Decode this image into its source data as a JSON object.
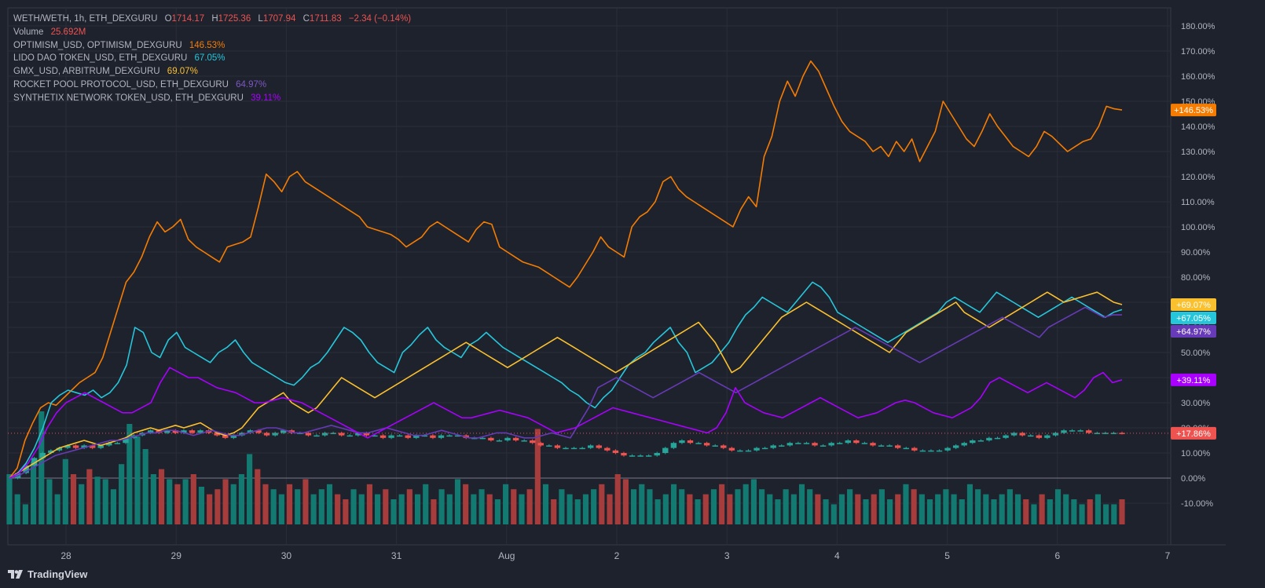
{
  "legend": {
    "main_symbol": "WETH/WETH, 1h, ETH_DEXGURU",
    "ohlc": [
      {
        "k": "O",
        "v": "1714.17"
      },
      {
        "k": "H",
        "v": "1725.36"
      },
      {
        "k": "L",
        "v": "1707.94"
      },
      {
        "k": "C",
        "v": "1711.83"
      }
    ],
    "change": "−2.34 (−0.14%)",
    "volume_label": "Volume",
    "volume_value": "25.692M"
  },
  "brand": "TradingView",
  "colors": {
    "background": "#1e222d",
    "grid": "#2a2e39",
    "up": "#26a69a",
    "down": "#ef5350",
    "volume_up": "#137a72",
    "volume_down": "#a63d3c",
    "zero_line": "#787b86"
  },
  "chart_data": {
    "type": "line",
    "x_ticks": [
      "28",
      "29",
      "30",
      "31",
      "Aug",
      "2",
      "3",
      "4",
      "5",
      "6",
      "7"
    ],
    "y_ticks": [
      "180.00%",
      "170.00%",
      "160.00%",
      "150.00%",
      "140.00%",
      "130.00%",
      "120.00%",
      "110.00%",
      "100.00%",
      "90.00%",
      "80.00%",
      "70.00%",
      "60.00%",
      "50.00%",
      "40.00%",
      "30.00%",
      "20.00%",
      "10.00%",
      "0.00%",
      "-10.00%"
    ],
    "ylim": [
      -17,
      185
    ],
    "y_unit": "%",
    "series": [
      {
        "name": "OPTIMISM_USD, OPTIMISM_DEXGURU",
        "value_label": "146.53%",
        "badge": "+146.53%",
        "color": "#f57c00",
        "values": [
          0,
          4,
          15,
          22,
          28,
          30,
          29,
          32,
          35,
          38,
          40,
          42,
          48,
          58,
          68,
          78,
          82,
          88,
          96,
          102,
          98,
          100,
          103,
          95,
          92,
          90,
          88,
          86,
          92,
          93,
          94,
          96,
          108,
          121,
          118,
          114,
          120,
          122,
          118,
          116,
          114,
          112,
          110,
          108,
          106,
          104,
          100,
          99,
          98,
          97,
          95,
          92,
          94,
          96,
          100,
          102,
          100,
          98,
          96,
          94,
          99,
          102,
          101,
          92,
          90,
          88,
          86,
          85,
          84,
          82,
          80,
          78,
          76,
          80,
          85,
          90,
          96,
          92,
          90,
          88,
          100,
          104,
          106,
          110,
          118,
          120,
          115,
          112,
          110,
          108,
          106,
          104,
          102,
          100,
          107,
          112,
          108,
          128,
          136,
          150,
          158,
          152,
          160,
          166,
          162,
          155,
          148,
          142,
          138,
          136,
          134,
          130,
          132,
          128,
          134,
          130,
          135,
          126,
          132,
          138,
          150,
          145,
          140,
          135,
          132,
          138,
          145,
          140,
          136,
          132,
          130,
          128,
          132,
          138,
          136,
          133,
          130,
          132,
          134,
          135,
          140,
          148,
          147,
          146.53
        ]
      },
      {
        "name": "LIDO DAO TOKEN_USD, ETH_DEXGURU",
        "value_label": "67.05%",
        "badge": "+67.05%",
        "color": "#26c6da",
        "values": [
          0,
          2,
          6,
          12,
          20,
          30,
          33,
          35,
          34,
          33,
          35,
          32,
          34,
          38,
          45,
          60,
          58,
          50,
          48,
          55,
          58,
          52,
          50,
          48,
          46,
          50,
          52,
          55,
          50,
          46,
          44,
          42,
          40,
          38,
          37,
          40,
          44,
          46,
          50,
          55,
          60,
          58,
          55,
          50,
          46,
          44,
          42,
          50,
          53,
          57,
          60,
          55,
          52,
          50,
          48,
          53,
          55,
          58,
          55,
          52,
          50,
          48,
          46,
          44,
          42,
          40,
          38,
          35,
          33,
          30,
          28,
          32,
          35,
          40,
          45,
          48,
          50,
          54,
          57,
          60,
          54,
          50,
          42,
          44,
          46,
          50,
          54,
          60,
          65,
          68,
          72,
          70,
          68,
          66,
          70,
          74,
          78,
          76,
          72,
          66,
          64,
          62,
          60,
          58,
          56,
          54,
          56,
          58,
          60,
          62,
          64,
          66,
          70,
          72,
          70,
          68,
          66,
          70,
          74,
          72,
          70,
          68,
          66,
          64,
          66,
          68,
          70,
          72,
          70,
          68,
          66,
          64,
          66,
          67.05
        ]
      },
      {
        "name": "GMX_USD, ARBITRUM_DEXGURU",
        "value_label": "69.07%",
        "badge": "+69.07%",
        "color": "#fbc02d",
        "values": [
          0,
          2,
          4,
          6,
          8,
          10,
          12,
          13,
          14,
          15,
          14,
          13,
          14,
          15,
          16,
          18,
          19,
          20,
          19,
          20,
          21,
          20,
          21,
          22,
          20,
          18,
          17,
          18,
          20,
          24,
          28,
          30,
          32,
          34,
          30,
          28,
          26,
          28,
          32,
          36,
          40,
          38,
          36,
          34,
          32,
          34,
          36,
          38,
          40,
          42,
          44,
          46,
          48,
          50,
          52,
          54,
          52,
          50,
          48,
          46,
          44,
          46,
          48,
          50,
          52,
          54,
          56,
          54,
          52,
          50,
          48,
          46,
          44,
          42,
          44,
          46,
          48,
          50,
          52,
          54,
          56,
          58,
          60,
          62,
          58,
          54,
          48,
          42,
          44,
          48,
          52,
          56,
          60,
          64,
          66,
          68,
          70,
          68,
          66,
          64,
          62,
          60,
          58,
          56,
          54,
          52,
          50,
          54,
          58,
          60,
          62,
          64,
          66,
          68,
          70,
          66,
          64,
          62,
          60,
          62,
          64,
          66,
          68,
          70,
          72,
          74,
          72,
          70,
          71,
          72,
          73,
          74,
          72,
          70,
          69.07
        ]
      },
      {
        "name": "ROCKET POOL PROTOCOL_USD, ETH_DEXGURU",
        "value_label": "64.97%",
        "badge": "+64.97%",
        "color": "#673ab7",
        "values": [
          0,
          1,
          3,
          5,
          7,
          9,
          10,
          11,
          12,
          13,
          14,
          15,
          15,
          16,
          17,
          18,
          18,
          19,
          19,
          18,
          17,
          18,
          19,
          18,
          17,
          17,
          18,
          19,
          20,
          20,
          19,
          18,
          18,
          19,
          20,
          21,
          20,
          19,
          18,
          18,
          19,
          20,
          19,
          18,
          17,
          17,
          18,
          19,
          18,
          17,
          16,
          16,
          17,
          18,
          18,
          17,
          16,
          16,
          17,
          18,
          17,
          16,
          22,
          28,
          36,
          38,
          40,
          38,
          36,
          34,
          32,
          34,
          36,
          38,
          40,
          42,
          40,
          38,
          36,
          34,
          36,
          38,
          40,
          42,
          44,
          46,
          48,
          50,
          52,
          54,
          56,
          58,
          60,
          58,
          56,
          54,
          52,
          50,
          48,
          46,
          48,
          50,
          52,
          54,
          56,
          58,
          60,
          62,
          64,
          62,
          60,
          58,
          56,
          60,
          62,
          64,
          66,
          68,
          66,
          64,
          65,
          64.97
        ]
      },
      {
        "name": "SYNTHETIX NETWORK TOKEN_USD, ETH_DEXGURU",
        "value_label": "39.11%",
        "badge": "+39.11%",
        "color": "#aa00ff",
        "values": [
          0,
          2,
          6,
          12,
          20,
          26,
          30,
          32,
          34,
          32,
          30,
          28,
          26,
          26,
          28,
          30,
          38,
          44,
          42,
          40,
          40,
          38,
          36,
          35,
          34,
          32,
          30,
          30,
          31,
          32,
          31,
          30,
          28,
          26,
          24,
          22,
          20,
          18,
          16,
          18,
          20,
          22,
          24,
          26,
          28,
          30,
          28,
          26,
          24,
          24,
          25,
          26,
          27,
          26,
          25,
          24,
          22,
          20,
          18,
          19,
          20,
          22,
          24,
          26,
          28,
          27,
          26,
          25,
          24,
          23,
          22,
          21,
          20,
          19,
          18,
          20,
          26,
          36,
          30,
          28,
          26,
          25,
          24,
          26,
          28,
          30,
          32,
          30,
          28,
          26,
          24,
          25,
          26,
          28,
          30,
          31,
          30,
          28,
          26,
          25,
          24,
          26,
          28,
          32,
          38,
          40,
          38,
          36,
          34,
          36,
          38,
          36,
          34,
          32,
          35,
          40,
          42,
          38,
          39.11
        ]
      }
    ],
    "price": {
      "name": "WETH/WETH, 1h, ETH_DEXGURU",
      "badge": "+17.86%",
      "last": 17.86,
      "values": [
        0,
        2,
        5,
        8,
        10,
        11,
        12,
        13,
        12,
        13,
        12,
        13,
        14,
        14,
        16,
        17,
        18,
        19,
        18,
        19,
        18,
        19,
        18,
        19,
        18,
        17,
        16,
        17,
        18,
        19,
        18,
        17,
        18,
        19,
        18,
        18,
        17,
        17,
        18,
        18,
        17,
        17,
        18,
        17,
        17,
        16,
        17,
        17,
        16,
        17,
        17,
        16,
        17,
        17,
        17,
        16,
        16,
        16,
        15,
        15,
        16,
        15,
        15,
        14,
        13,
        13,
        12,
        12,
        12,
        12,
        13,
        12,
        11,
        10,
        9,
        9,
        9,
        9,
        10,
        12,
        14,
        15,
        14,
        14,
        13,
        13,
        12,
        11,
        11,
        11,
        12,
        12,
        13,
        13,
        14,
        14,
        14,
        13,
        13,
        14,
        14,
        15,
        14,
        14,
        13,
        13,
        13,
        12,
        12,
        11,
        11,
        11,
        11,
        12,
        13,
        14,
        15,
        15,
        16,
        16,
        17,
        18,
        17,
        17,
        16,
        17,
        18,
        19,
        19,
        19,
        18,
        18,
        18,
        18,
        17.86
      ]
    },
    "volume_m": [
      20,
      12,
      8,
      25,
      45,
      18,
      12,
      26,
      20,
      16,
      22,
      19,
      18,
      14,
      24,
      40,
      35,
      30,
      20,
      22,
      18,
      16,
      18,
      20,
      15,
      12,
      14,
      18,
      16,
      20,
      28,
      22,
      16,
      14,
      12,
      16,
      14,
      18,
      12,
      14,
      16,
      12,
      10,
      14,
      12,
      16,
      12,
      14,
      10,
      12,
      14,
      12,
      16,
      10,
      14,
      12,
      18,
      16,
      12,
      14,
      12,
      10,
      16,
      14,
      12,
      14,
      38,
      16,
      10,
      14,
      12,
      10,
      12,
      14,
      16,
      12,
      20,
      18,
      14,
      16,
      14,
      10,
      12,
      16,
      14,
      12,
      10,
      12,
      14,
      16,
      12,
      14,
      16,
      18,
      14,
      12,
      10,
      14,
      12,
      16,
      14,
      12,
      10,
      8,
      12,
      14,
      12,
      10,
      12,
      14,
      10,
      12,
      16,
      14,
      12,
      10,
      12,
      14,
      12,
      10,
      16,
      14,
      12,
      10,
      12,
      14,
      12,
      10,
      8,
      12,
      10,
      14,
      12,
      10,
      8,
      10,
      12,
      8,
      8,
      10
    ]
  }
}
